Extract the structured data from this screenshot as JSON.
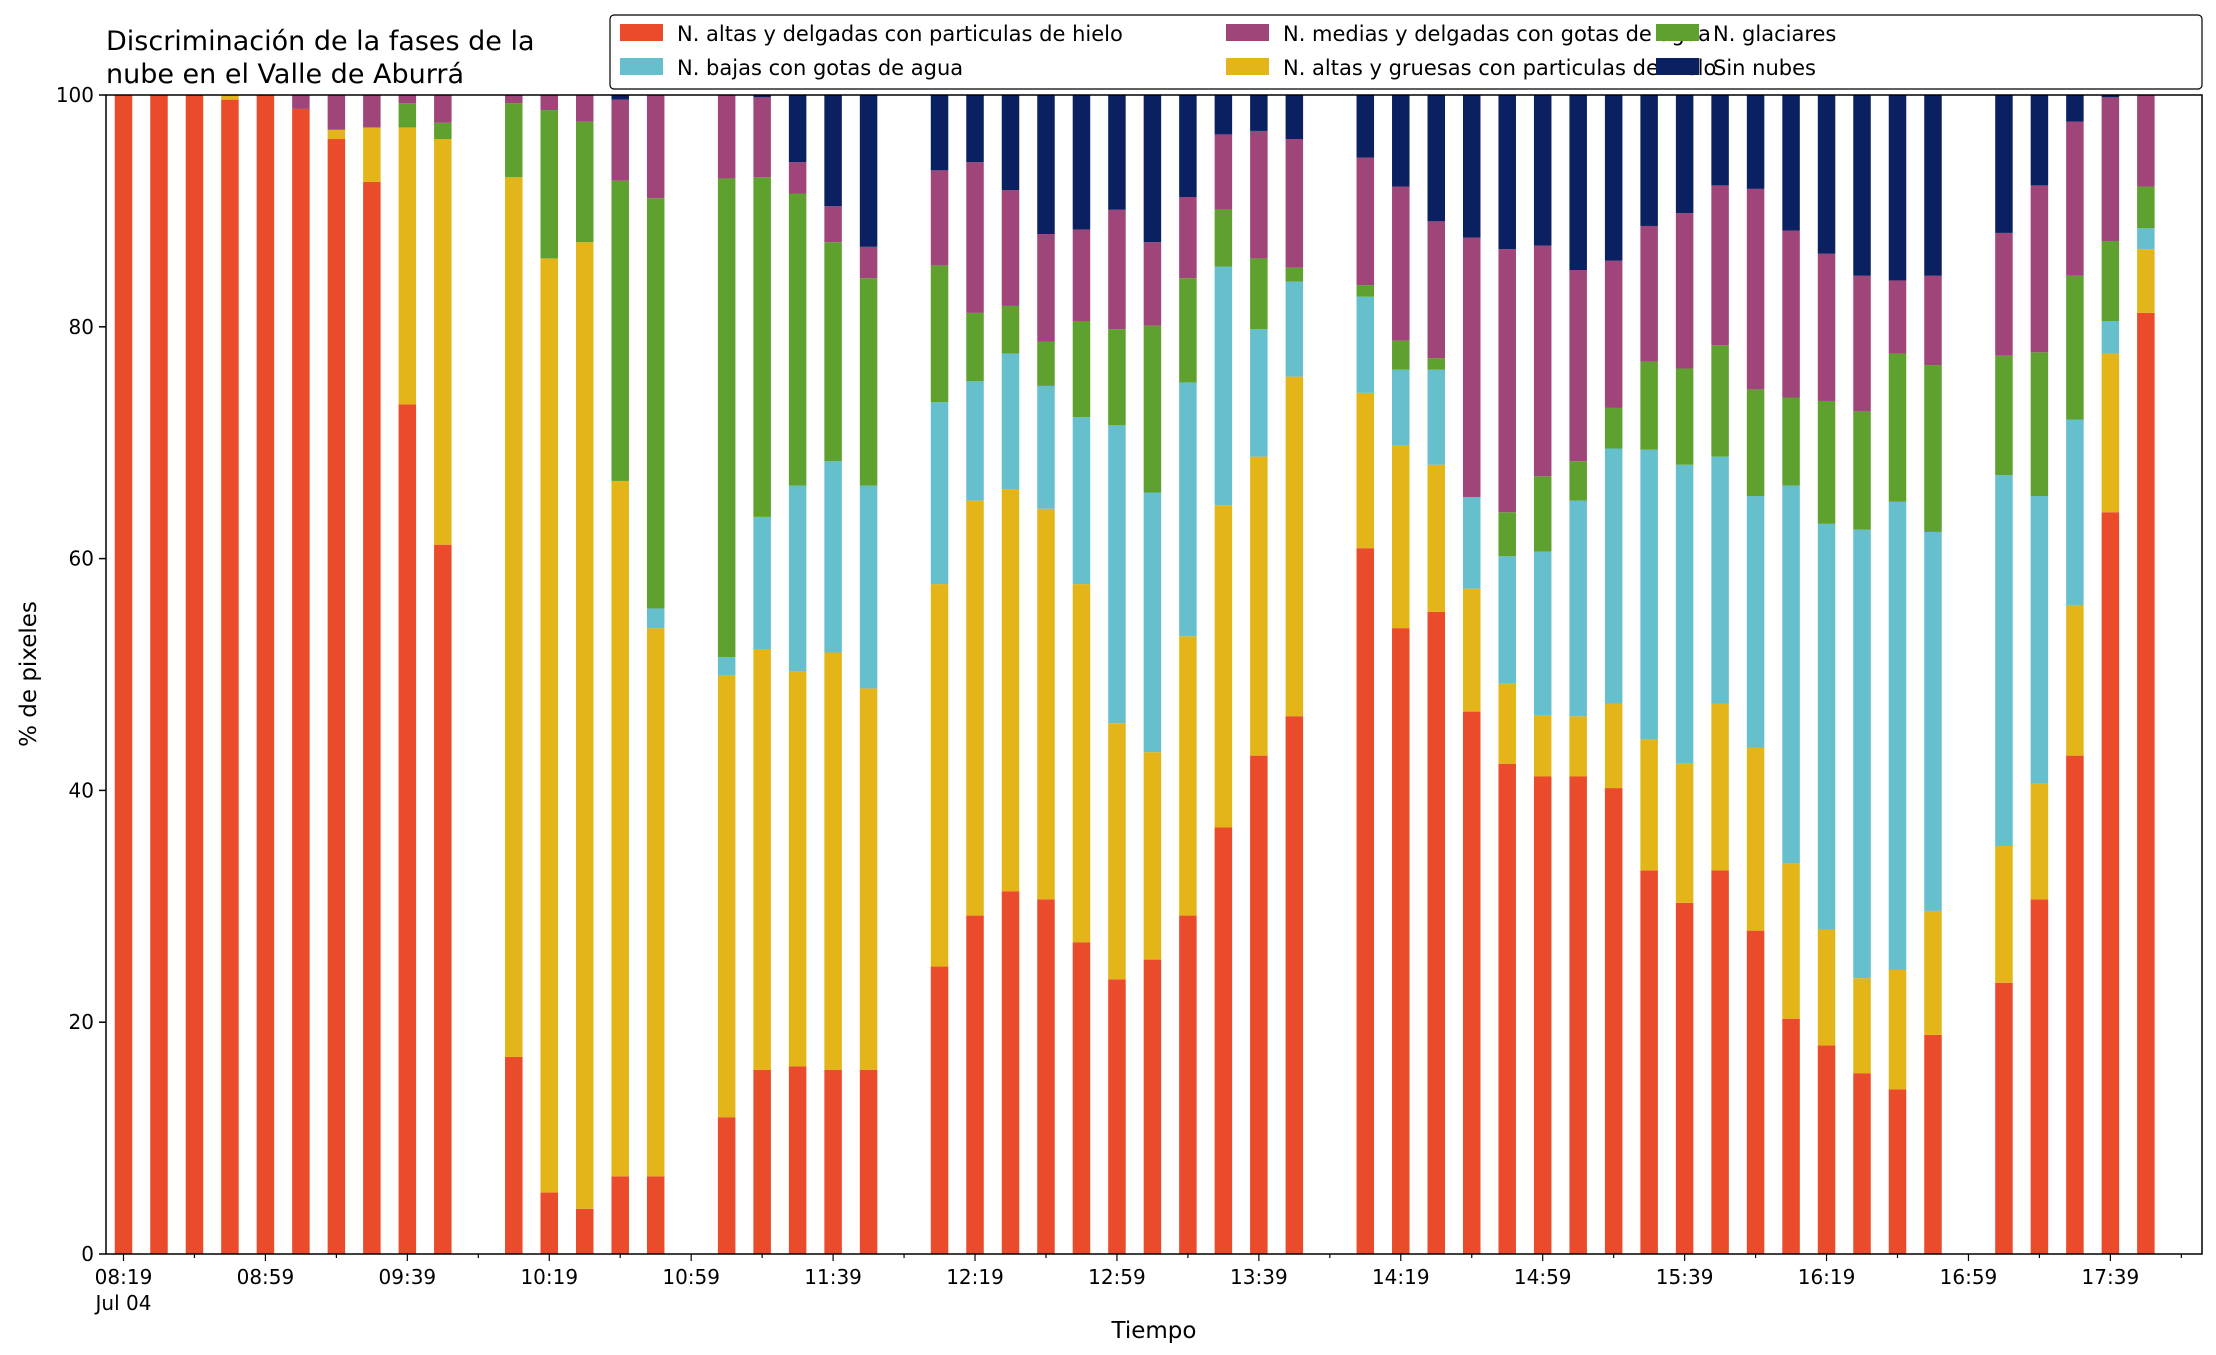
{
  "chart_data": {
    "type": "bar",
    "stacked": true,
    "title_line1": "Discriminación de la fases de la",
    "title_line2": "nube en el Valle de Aburrá",
    "xlabel": "Tiempo",
    "ylabel": "% de pixeles",
    "ylim": [
      0,
      100
    ],
    "yticks": [
      "0",
      "20",
      "40",
      "60",
      "80",
      "100"
    ],
    "xtick_labels": [
      "08:19",
      "08:59",
      "09:39",
      "10:19",
      "10:59",
      "11:39",
      "12:19",
      "12:59",
      "13:39",
      "14:19",
      "14:59",
      "15:39",
      "16:19",
      "16:59",
      "17:39"
    ],
    "xtick_date": "Jul 04",
    "grid": false,
    "legend_position": "top-right",
    "series": [
      {
        "name": "N. altas y delgadas con particulas de hielo",
        "color": "#ea4b2a"
      },
      {
        "name": "N. altas y gruesas con particulas de hielo",
        "color": "#e4b519"
      },
      {
        "name": "N. bajas con gotas de agua",
        "color": "#66bfcc"
      },
      {
        "name": "N. glaciares",
        "color": "#5ea12f"
      },
      {
        "name": "N. medias y delgadas con gotas de agua",
        "color": "#a0457a"
      },
      {
        "name": "Sin nubes",
        "color": "#0a2060"
      }
    ],
    "legend_order": [
      0,
      2,
      4,
      1,
      3,
      5
    ],
    "bars": [
      {
        "slot": 0,
        "values": [
          100,
          0,
          0,
          0,
          0,
          0
        ]
      },
      {
        "slot": 1,
        "values": [
          100,
          0,
          0,
          0,
          0,
          0
        ]
      },
      {
        "slot": 2,
        "values": [
          100,
          0,
          0,
          0,
          0,
          0
        ]
      },
      {
        "slot": 3,
        "values": [
          99.6,
          0.4,
          0,
          0,
          0,
          0
        ]
      },
      {
        "slot": 4,
        "values": [
          100,
          0,
          0,
          0,
          0,
          0
        ]
      },
      {
        "slot": 5,
        "values": [
          98.8,
          0,
          0,
          0,
          1.2,
          0
        ]
      },
      {
        "slot": 6,
        "values": [
          96.2,
          0.8,
          0,
          0,
          3.0,
          0
        ]
      },
      {
        "slot": 7,
        "values": [
          92.5,
          4.7,
          0,
          0,
          2.8,
          0
        ]
      },
      {
        "slot": 8,
        "values": [
          73.3,
          23.9,
          0,
          2.1,
          0.7,
          0
        ]
      },
      {
        "slot": 9,
        "values": [
          61.2,
          35.0,
          0,
          1.4,
          2.4,
          0
        ]
      },
      {
        "slot": 11,
        "values": [
          17.0,
          75.9,
          0,
          6.4,
          0.7,
          0
        ]
      },
      {
        "slot": 12,
        "values": [
          5.3,
          80.6,
          0,
          12.8,
          1.3,
          0
        ]
      },
      {
        "slot": 13,
        "values": [
          3.9,
          83.4,
          0,
          10.4,
          2.3,
          0
        ]
      },
      {
        "slot": 14,
        "values": [
          6.7,
          60.0,
          0,
          25.9,
          7.0,
          0.4
        ]
      },
      {
        "slot": 15,
        "values": [
          6.7,
          47.3,
          1.7,
          35.4,
          8.9,
          0
        ]
      },
      {
        "slot": 17,
        "values": [
          11.8,
          38.1,
          1.6,
          41.3,
          7.2,
          0
        ]
      },
      {
        "slot": 18,
        "values": [
          15.9,
          36.3,
          11.4,
          29.3,
          6.9,
          0.2
        ]
      },
      {
        "slot": 19,
        "values": [
          16.2,
          34.1,
          16.0,
          25.2,
          2.7,
          5.8
        ]
      },
      {
        "slot": 20,
        "values": [
          15.9,
          36.0,
          16.5,
          18.9,
          3.1,
          9.6
        ]
      },
      {
        "slot": 21,
        "values": [
          15.9,
          32.9,
          17.5,
          17.9,
          2.7,
          13.1
        ]
      },
      {
        "slot": 23,
        "values": [
          24.8,
          33.0,
          15.7,
          11.8,
          8.2,
          6.5
        ]
      },
      {
        "slot": 24,
        "values": [
          29.2,
          35.8,
          10.3,
          5.9,
          13.0,
          5.8
        ]
      },
      {
        "slot": 25,
        "values": [
          31.3,
          34.7,
          11.7,
          4.1,
          10.0,
          8.2
        ]
      },
      {
        "slot": 26,
        "values": [
          30.6,
          33.7,
          10.6,
          3.8,
          9.3,
          12.0
        ]
      },
      {
        "slot": 27,
        "values": [
          26.9,
          30.9,
          14.4,
          8.3,
          7.9,
          11.6
        ]
      },
      {
        "slot": 28,
        "values": [
          23.7,
          22.1,
          25.7,
          8.3,
          10.3,
          9.9
        ]
      },
      {
        "slot": 29,
        "values": [
          25.4,
          17.9,
          22.4,
          14.4,
          7.2,
          12.7
        ]
      },
      {
        "slot": 30,
        "values": [
          29.2,
          24.1,
          21.9,
          9.0,
          7.0,
          8.8
        ]
      },
      {
        "slot": 31,
        "values": [
          36.8,
          27.8,
          20.6,
          4.9,
          6.5,
          3.4
        ]
      },
      {
        "slot": 32,
        "values": [
          43.0,
          25.8,
          11.0,
          6.1,
          11.0,
          3.1
        ]
      },
      {
        "slot": 33,
        "values": [
          46.4,
          29.3,
          8.2,
          1.2,
          11.1,
          3.8
        ]
      },
      {
        "slot": 35,
        "values": [
          60.9,
          13.4,
          8.3,
          1.0,
          11.0,
          5.4
        ]
      },
      {
        "slot": 36,
        "values": [
          54.0,
          15.8,
          6.5,
          2.5,
          13.3,
          7.9
        ]
      },
      {
        "slot": 37,
        "values": [
          55.4,
          12.7,
          8.2,
          1.0,
          11.8,
          10.9
        ]
      },
      {
        "slot": 38,
        "values": [
          46.8,
          10.6,
          7.9,
          0,
          22.4,
          12.3
        ]
      },
      {
        "slot": 39,
        "values": [
          42.3,
          6.9,
          11.0,
          3.8,
          22.7,
          13.3
        ]
      },
      {
        "slot": 40,
        "values": [
          41.2,
          5.3,
          14.1,
          6.5,
          19.9,
          13.0
        ]
      },
      {
        "slot": 41,
        "values": [
          41.2,
          5.2,
          18.6,
          3.4,
          16.5,
          15.1
        ]
      },
      {
        "slot": 42,
        "values": [
          40.2,
          7.3,
          22.0,
          3.5,
          12.7,
          14.3
        ]
      },
      {
        "slot": 43,
        "values": [
          33.1,
          11.3,
          25.0,
          7.6,
          11.7,
          11.3
        ]
      },
      {
        "slot": 44,
        "values": [
          30.3,
          12.0,
          25.8,
          8.3,
          13.4,
          10.2
        ]
      },
      {
        "slot": 45,
        "values": [
          33.1,
          14.4,
          21.3,
          9.6,
          13.8,
          7.8
        ]
      },
      {
        "slot": 46,
        "values": [
          27.9,
          15.8,
          21.7,
          9.2,
          17.3,
          8.1
        ]
      },
      {
        "slot": 47,
        "values": [
          20.3,
          13.4,
          32.6,
          7.6,
          14.4,
          11.7
        ]
      },
      {
        "slot": 48,
        "values": [
          18.0,
          10.0,
          35.0,
          10.6,
          12.7,
          13.7
        ]
      },
      {
        "slot": 49,
        "values": [
          15.6,
          8.2,
          38.7,
          10.2,
          11.7,
          15.6
        ]
      },
      {
        "slot": 50,
        "values": [
          14.2,
          10.3,
          40.4,
          12.8,
          6.3,
          16.0
        ]
      },
      {
        "slot": 51,
        "values": [
          18.9,
          10.7,
          32.7,
          14.4,
          7.7,
          15.6
        ]
      },
      {
        "slot": 53,
        "values": [
          23.4,
          11.8,
          32.0,
          10.3,
          10.6,
          11.9
        ]
      },
      {
        "slot": 54,
        "values": [
          30.6,
          10.0,
          24.8,
          12.4,
          14.4,
          7.8
        ]
      },
      {
        "slot": 55,
        "values": [
          43.0,
          13.0,
          16.0,
          12.4,
          13.3,
          2.3
        ]
      },
      {
        "slot": 56,
        "values": [
          64.0,
          13.7,
          2.8,
          6.9,
          12.4,
          0.2
        ]
      },
      {
        "slot": 57,
        "values": [
          81.2,
          5.5,
          1.8,
          3.6,
          7.9,
          0
        ]
      }
    ]
  }
}
